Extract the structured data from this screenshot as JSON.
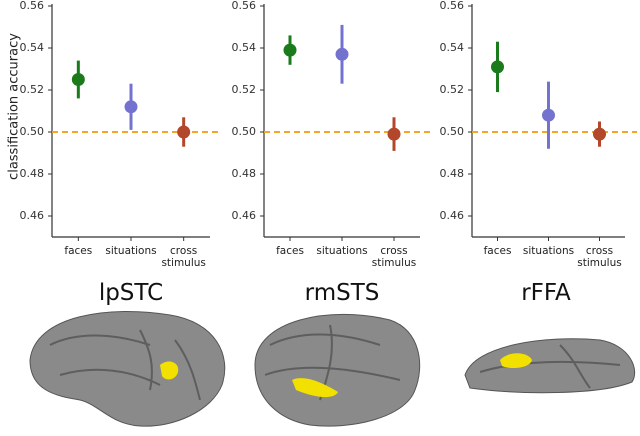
{
  "chart_data": [
    {
      "type": "point",
      "title": "lpSTC",
      "y_label": "classification accuracy",
      "categories": [
        "faces",
        "situations",
        "cross stimulus"
      ],
      "values": [
        0.525,
        0.512,
        0.5
      ],
      "errors": [
        0.009,
        0.011,
        0.007
      ],
      "colors": [
        "#1b7a1b",
        "#7373cf",
        "#b2472b"
      ],
      "ylim": [
        0.45,
        0.56
      ],
      "yticks": [
        0.56,
        0.54,
        0.52,
        {
          "value": 0.5,
          "label": "0.50"
        },
        0.48,
        0.46
      ],
      "reference_line": 0.5,
      "reference_color": "#f5a623"
    },
    {
      "type": "point",
      "title": "rmSTS",
      "categories": [
        "faces",
        "situations",
        "cross stimulus"
      ],
      "values": [
        0.539,
        0.537,
        0.499
      ],
      "errors": [
        0.007,
        0.014,
        0.008
      ],
      "colors": [
        "#1b7a1b",
        "#7373cf",
        "#b2472b"
      ],
      "ylim": [
        0.45,
        0.56
      ],
      "yticks": [
        0.56,
        0.54,
        0.52,
        {
          "value": 0.5,
          "label": "0.50"
        },
        0.48,
        0.46
      ],
      "reference_line": 0.5,
      "reference_color": "#f5a623"
    },
    {
      "type": "point",
      "title": "rFFA",
      "categories": [
        "faces",
        "situations",
        "cross stimulus"
      ],
      "values": [
        0.531,
        0.508,
        0.499
      ],
      "errors": [
        0.012,
        0.016,
        0.006
      ],
      "colors": [
        "#1b7a1b",
        "#7373cf",
        "#b2472b"
      ],
      "ylim": [
        0.45,
        0.56
      ],
      "yticks": [
        0.56,
        0.54,
        0.52,
        {
          "value": 0.5,
          "label": "0.50"
        },
        0.48,
        0.46
      ],
      "reference_line": 0.5,
      "reference_color": "#f5a623"
    }
  ]
}
